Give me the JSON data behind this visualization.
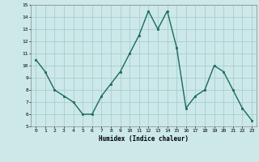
{
  "x": [
    0,
    1,
    2,
    3,
    4,
    5,
    6,
    7,
    8,
    9,
    10,
    11,
    12,
    13,
    14,
    15,
    16,
    17,
    18,
    19,
    20,
    21,
    22,
    23
  ],
  "y": [
    10.5,
    9.5,
    8.0,
    7.5,
    7.0,
    6.0,
    6.0,
    7.5,
    8.5,
    9.5,
    11.0,
    12.5,
    14.5,
    13.0,
    14.5,
    11.5,
    6.5,
    7.5,
    8.0,
    10.0,
    9.5,
    8.0,
    6.5,
    5.5
  ],
  "xlabel": "Humidex (Indice chaleur)",
  "ylim": [
    5,
    15
  ],
  "xlim": [
    -0.5,
    23.5
  ],
  "yticks": [
    5,
    6,
    7,
    8,
    9,
    10,
    11,
    12,
    13,
    14,
    15
  ],
  "xticks": [
    0,
    1,
    2,
    3,
    4,
    5,
    6,
    7,
    8,
    9,
    10,
    11,
    12,
    13,
    14,
    15,
    16,
    17,
    18,
    19,
    20,
    21,
    22,
    23
  ],
  "line_color": "#1a6b5a",
  "marker_color": "#1a6b5a",
  "bg_color": "#cce8e8",
  "grid_color": "#aacece",
  "fig_bg": "#cce8e8"
}
